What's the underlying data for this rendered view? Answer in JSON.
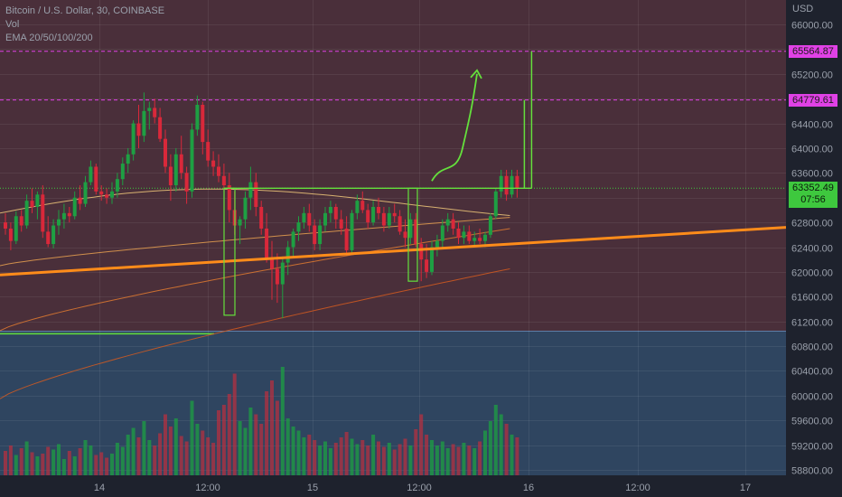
{
  "legend": {
    "symbol": "Bitcoin / U.S. Dollar, 30, COINBASE",
    "vol": "Vol",
    "ema": "EMA 20/50/100/200"
  },
  "currency": "USD",
  "colors": {
    "bg_top": "#4a2f3a",
    "bg_bottom": "#2f4560",
    "up": "#1e9f43",
    "down": "#d9283a",
    "magenta": "#e041e6",
    "green_line": "#64e03c",
    "orange": "#ff8c1a",
    "last_price": "#3ec83e"
  },
  "chart_data": {
    "type": "candlestick",
    "symbol": "Bitcoin / U.S. Dollar",
    "interval": "30",
    "exchange": "COINBASE",
    "price_axis": [
      66000,
      65600,
      65200,
      64800,
      64400,
      64000,
      63600,
      63200,
      62800,
      62400,
      62000,
      61600,
      61200,
      60800,
      60400,
      60000,
      59600,
      59200,
      58800
    ],
    "time_axis": [
      "14",
      "12:00",
      "15",
      "12:00",
      "16",
      "12:00",
      "17"
    ],
    "levels": {
      "resistance_1": "65564.87",
      "resistance_2": "64779.61",
      "last_price": "63352.49",
      "countdown": "07:56"
    },
    "ohlc": [
      [
        62800,
        62950,
        62600,
        62700
      ],
      [
        62700,
        62800,
        62350,
        62500
      ],
      [
        62500,
        62980,
        62450,
        62900
      ],
      [
        62900,
        63000,
        62650,
        62750
      ],
      [
        62750,
        63250,
        62700,
        63150
      ],
      [
        63150,
        63350,
        62950,
        63050
      ],
      [
        63050,
        63300,
        62850,
        63250
      ],
      [
        63250,
        63400,
        62550,
        62650
      ],
      [
        62650,
        62900,
        62400,
        62450
      ],
      [
        62450,
        62850,
        62380,
        62750
      ],
      [
        62750,
        63000,
        62600,
        62850
      ],
      [
        62850,
        63100,
        62700,
        62950
      ],
      [
        62950,
        63050,
        62800,
        62900
      ],
      [
        62900,
        63300,
        62850,
        63200
      ],
      [
        63200,
        63400,
        63000,
        63100
      ],
      [
        63100,
        63550,
        63050,
        63450
      ],
      [
        63450,
        63800,
        63400,
        63700
      ],
      [
        63700,
        63750,
        63250,
        63300
      ],
      [
        63300,
        63400,
        63150,
        63250
      ],
      [
        63250,
        63350,
        63100,
        63200
      ],
      [
        63200,
        63450,
        63100,
        63300
      ],
      [
        63300,
        63600,
        63200,
        63500
      ],
      [
        63500,
        63850,
        63400,
        63750
      ],
      [
        63750,
        64000,
        63600,
        63900
      ],
      [
        63900,
        64450,
        63800,
        64400
      ],
      [
        64400,
        64700,
        64000,
        64200
      ],
      [
        64200,
        64900,
        64100,
        64600
      ],
      [
        64600,
        64750,
        64300,
        64650
      ],
      [
        64650,
        64800,
        64400,
        64500
      ],
      [
        64500,
        64650,
        64100,
        64150
      ],
      [
        64150,
        64300,
        63600,
        63700
      ],
      [
        63700,
        63900,
        63150,
        63400
      ],
      [
        63400,
        64000,
        63300,
        63900
      ],
      [
        63900,
        64200,
        63500,
        63600
      ],
      [
        63600,
        63700,
        63100,
        63300
      ],
      [
        63300,
        64400,
        63200,
        64300
      ],
      [
        64300,
        64850,
        64200,
        64700
      ],
      [
        64700,
        64750,
        63900,
        64100
      ],
      [
        64100,
        64300,
        63700,
        63800
      ],
      [
        63800,
        63950,
        63550,
        63700
      ],
      [
        63700,
        63900,
        63450,
        63550
      ],
      [
        63550,
        63750,
        63300,
        63400
      ],
      [
        63400,
        63600,
        62800,
        63000
      ],
      [
        63000,
        63300,
        62600,
        62750
      ],
      [
        62750,
        62900,
        62450,
        62850
      ],
      [
        62850,
        63300,
        62700,
        63200
      ],
      [
        63200,
        63700,
        63000,
        63450
      ],
      [
        63450,
        63600,
        62900,
        63050
      ],
      [
        63050,
        63150,
        62600,
        62700
      ],
      [
        62700,
        62950,
        62150,
        62200
      ],
      [
        62200,
        62500,
        61550,
        62050
      ],
      [
        62050,
        62300,
        61500,
        61800
      ],
      [
        61800,
        62250,
        61250,
        62150
      ],
      [
        62150,
        62500,
        61950,
        62400
      ],
      [
        62400,
        62700,
        62250,
        62650
      ],
      [
        62650,
        62900,
        62500,
        62800
      ],
      [
        62800,
        63050,
        62700,
        62950
      ],
      [
        62950,
        63100,
        62650,
        62750
      ],
      [
        62750,
        62850,
        62350,
        62450
      ],
      [
        62450,
        62850,
        62350,
        62750
      ],
      [
        62750,
        63050,
        62650,
        62950
      ],
      [
        62950,
        63150,
        62800,
        63050
      ],
      [
        63050,
        63100,
        62700,
        62850
      ],
      [
        62850,
        63000,
        62600,
        62700
      ],
      [
        62700,
        62900,
        62300,
        62350
      ],
      [
        62350,
        63000,
        62300,
        62950
      ],
      [
        62950,
        63250,
        62850,
        63150
      ],
      [
        63150,
        63300,
        62950,
        63000
      ],
      [
        63000,
        63100,
        62700,
        62800
      ],
      [
        62800,
        63150,
        62750,
        63050
      ],
      [
        63050,
        63200,
        62850,
        62950
      ],
      [
        62950,
        63050,
        62650,
        62750
      ],
      [
        62750,
        63050,
        62700,
        62950
      ],
      [
        62950,
        63100,
        62800,
        62900
      ],
      [
        62900,
        63000,
        62600,
        62650
      ],
      [
        62650,
        62850,
        62400,
        62550
      ],
      [
        62550,
        62950,
        62450,
        62850
      ],
      [
        62850,
        62950,
        62400,
        62450
      ],
      [
        62450,
        62550,
        61850,
        62200
      ],
      [
        62200,
        62450,
        61900,
        62000
      ],
      [
        62000,
        62500,
        61950,
        62400
      ],
      [
        62400,
        62600,
        62250,
        62500
      ],
      [
        62500,
        62850,
        62400,
        62750
      ],
      [
        62750,
        62950,
        62650,
        62850
      ],
      [
        62850,
        62950,
        62600,
        62700
      ],
      [
        62700,
        62800,
        62450,
        62550
      ],
      [
        62550,
        62750,
        62450,
        62650
      ],
      [
        62650,
        62750,
        62450,
        62500
      ],
      [
        62500,
        62650,
        62400,
        62550
      ],
      [
        62550,
        62700,
        62450,
        62500
      ],
      [
        62500,
        62650,
        62400,
        62600
      ],
      [
        62600,
        62950,
        62550,
        62900
      ],
      [
        62900,
        63350,
        62850,
        63300
      ],
      [
        63300,
        63650,
        63200,
        63550
      ],
      [
        63550,
        63650,
        63150,
        63250
      ],
      [
        63250,
        63650,
        63200,
        63550
      ],
      [
        63550,
        63650,
        63200,
        63352.49
      ]
    ],
    "volume": [
      18,
      22,
      15,
      20,
      25,
      17,
      14,
      16,
      21,
      19,
      23,
      12,
      18,
      14,
      20,
      26,
      22,
      15,
      17,
      13,
      16,
      24,
      21,
      30,
      35,
      28,
      40,
      26,
      22,
      31,
      45,
      36,
      42,
      29,
      25,
      55,
      38,
      33,
      28,
      24,
      48,
      52,
      60,
      75,
      40,
      35,
      50,
      45,
      38,
      62,
      70,
      55,
      80,
      42,
      36,
      33,
      28,
      30,
      26,
      22,
      25,
      20,
      24,
      28,
      32,
      27,
      23,
      26,
      22,
      30,
      25,
      21,
      24,
      19,
      23,
      27,
      22,
      34,
      45,
      30,
      26,
      22,
      25,
      20,
      23,
      21,
      24,
      22,
      20,
      25,
      33,
      40,
      52,
      45,
      38,
      30,
      28
    ],
    "volume_scale_max": 80,
    "ema": {
      "ema20": {
        "start": 62950,
        "end": 62950
      },
      "ema50": {
        "start": 62100,
        "end": 62880
      },
      "ema100": {
        "start": 61050,
        "end": 62700
      },
      "ema200": {
        "start": 59950,
        "end": 62050
      }
    },
    "trendline": {
      "from": 61950,
      "to": 62720
    },
    "horizontal_lines": {
      "resistance_1": 65564.87,
      "resistance_2": 64779.61,
      "neckline": 63352,
      "last_price": 63352.49,
      "green_base": 61000
    }
  }
}
